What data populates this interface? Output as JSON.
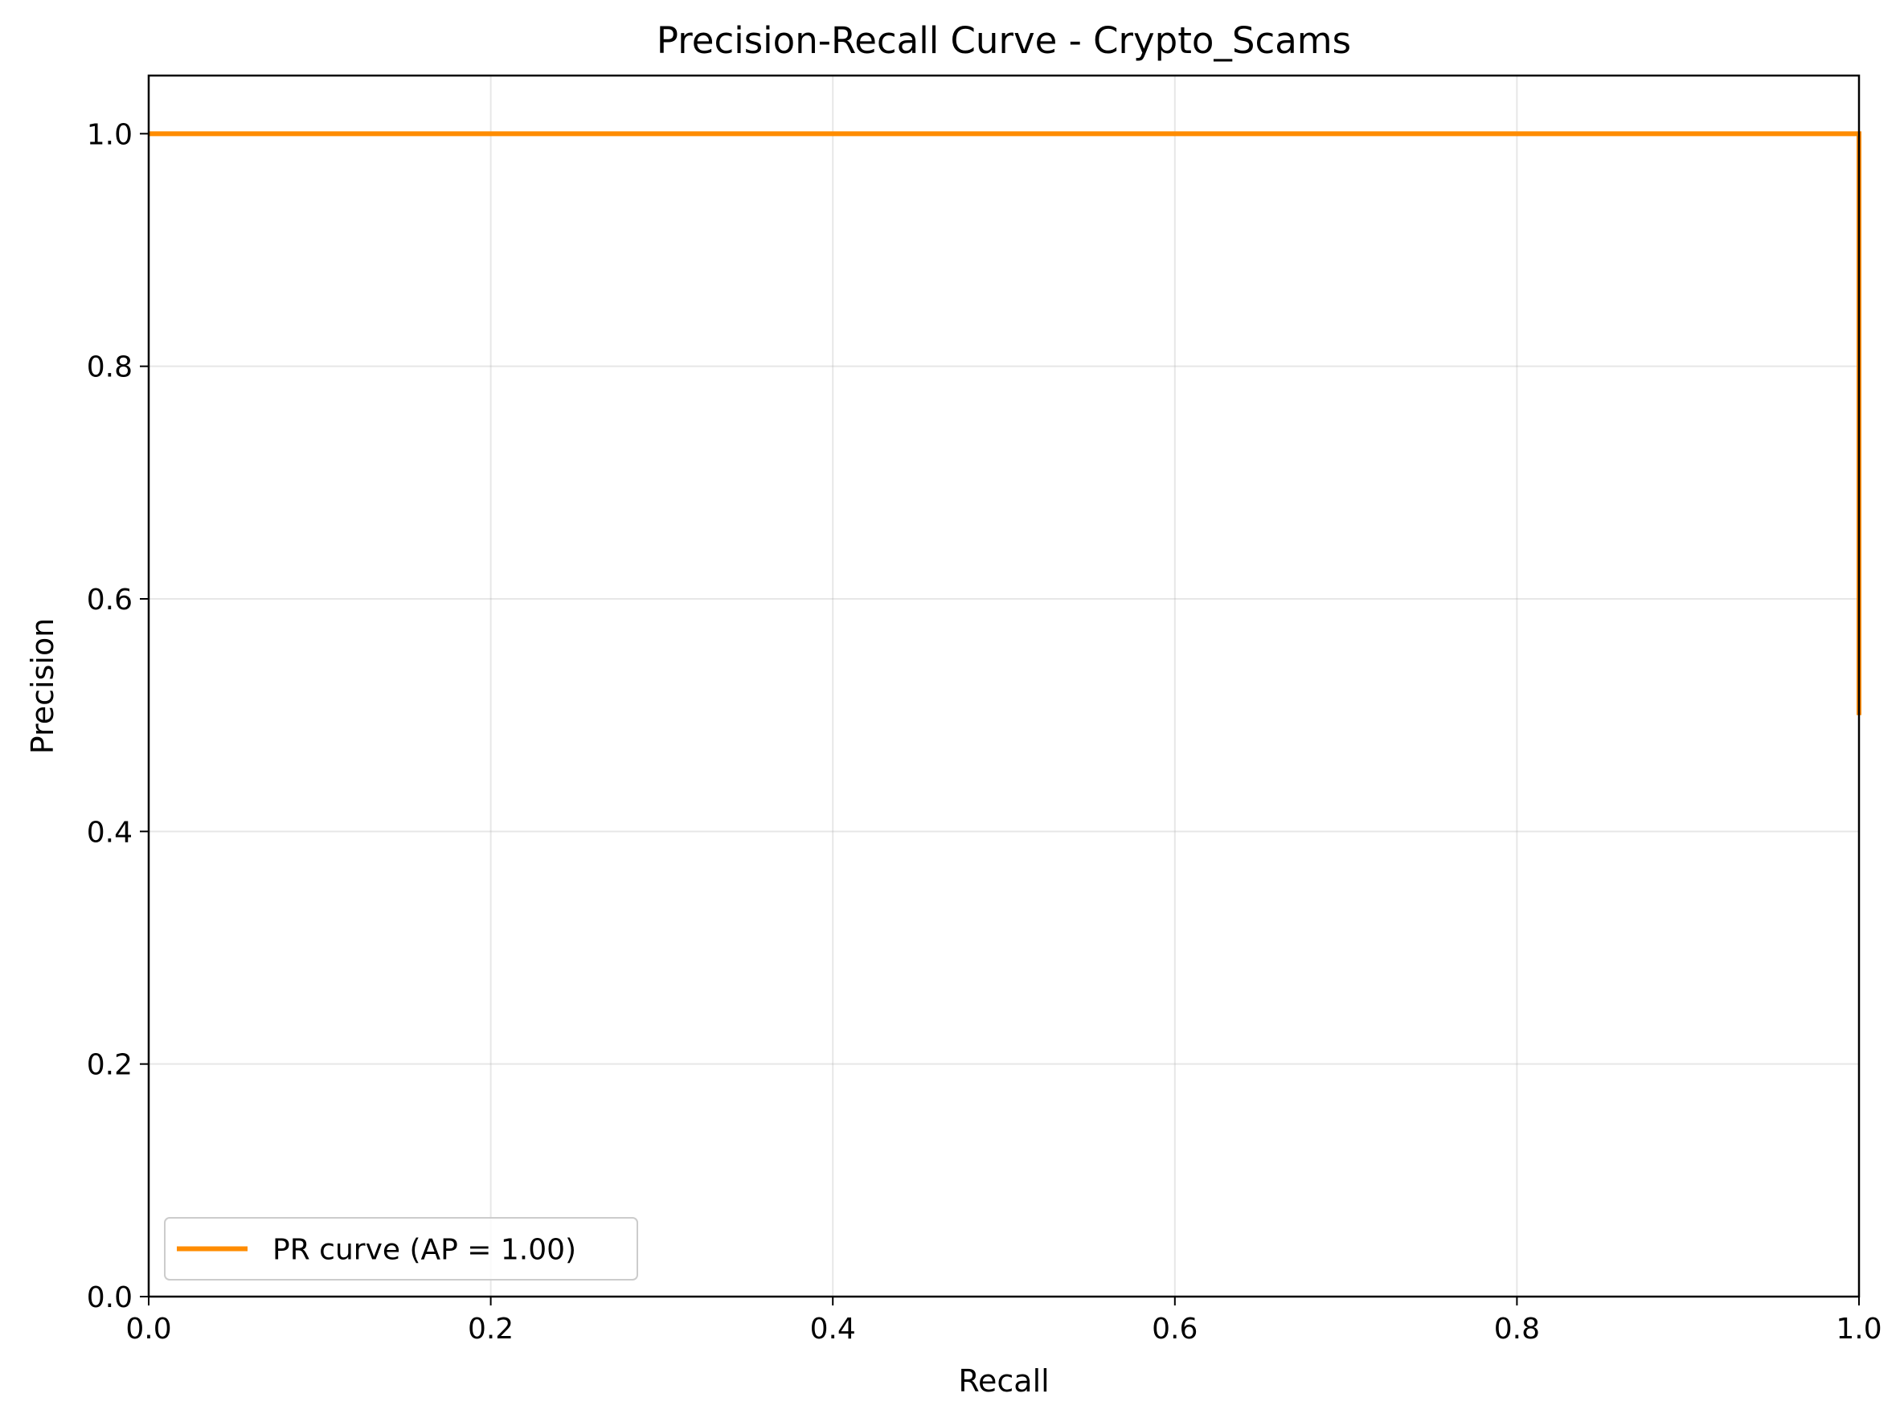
{
  "chart_data": {
    "type": "line",
    "title": "Precision-Recall Curve - Crypto_Scams",
    "xlabel": "Recall",
    "ylabel": "Precision",
    "xlim": [
      0.0,
      1.0
    ],
    "ylim": [
      0.0,
      1.05
    ],
    "xticks": [
      0.0,
      0.2,
      0.4,
      0.6,
      0.8,
      1.0
    ],
    "yticks": [
      0.0,
      0.2,
      0.4,
      0.6,
      0.8,
      1.0
    ],
    "grid": true,
    "legend_position": "lower-left",
    "series": [
      {
        "name": "PR curve (AP = 1.00)",
        "color": "#ff8c00",
        "x": [
          0.0,
          1.0,
          1.0
        ],
        "y": [
          1.0,
          1.0,
          0.5
        ]
      }
    ]
  }
}
